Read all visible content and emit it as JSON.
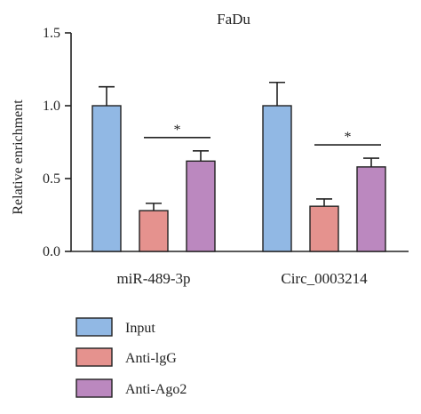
{
  "chart_data": {
    "type": "bar",
    "title": "FaDu",
    "ylabel": "Relative enrichment",
    "xlabel": "",
    "ylim": [
      0,
      1.5
    ],
    "yticks": [
      "0.0",
      "0.5",
      "1.0",
      "1.5"
    ],
    "categories": [
      "miR-489-3p",
      "Circ_0003214"
    ],
    "series": [
      {
        "name": "Input",
        "color": "#91B8E4",
        "values": [
          1.0,
          1.0
        ],
        "errors": [
          0.13,
          0.16
        ]
      },
      {
        "name": "Anti-lgG",
        "color": "#E5928E",
        "values": [
          0.28,
          0.31
        ],
        "errors": [
          0.05,
          0.05
        ]
      },
      {
        "name": "Anti-Ago2",
        "color": "#BB88BF",
        "values": [
          0.62,
          0.58
        ],
        "errors": [
          0.07,
          0.06
        ]
      }
    ],
    "significance": [
      {
        "category": "miR-489-3p",
        "between": [
          "Anti-lgG",
          "Anti-Ago2"
        ],
        "label": "*"
      },
      {
        "category": "Circ_0003214",
        "between": [
          "Anti-lgG",
          "Anti-Ago2"
        ],
        "label": "*"
      }
    ],
    "legend_position": "bottom-left",
    "grid": false
  }
}
